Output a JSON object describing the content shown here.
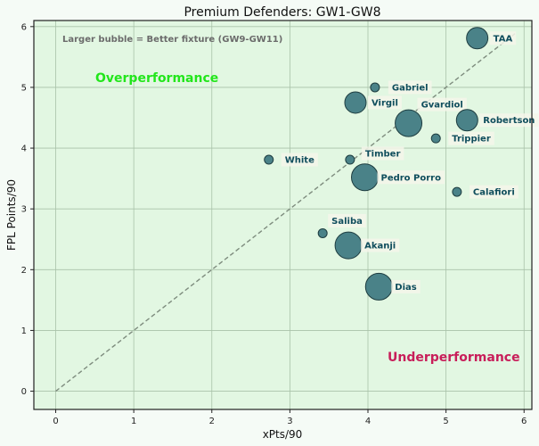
{
  "chart_data": {
    "type": "scatter",
    "title": "Premium Defenders: GW1-GW8",
    "xlabel": "xPts/90",
    "ylabel": "FPL Points/90",
    "xlim": [
      -0.28,
      6.1
    ],
    "ylim": [
      -0.3,
      6.1
    ],
    "xticks": [
      0,
      1,
      2,
      3,
      4,
      5,
      6
    ],
    "yticks": [
      0,
      1,
      2,
      3,
      4,
      5,
      6
    ],
    "grid": true,
    "bubble_note": "Larger bubble = Better fixture (GW9-GW11)",
    "annotations": {
      "over": "Overperformance",
      "under": "Underperformance"
    },
    "reference_line": {
      "x": [
        0,
        5.9
      ],
      "y": [
        0,
        5.9
      ],
      "style": "dashed"
    },
    "points": [
      {
        "name": "TAA",
        "x": 5.4,
        "y": 5.81,
        "size": 12
      },
      {
        "name": "Gabriel",
        "x": 4.09,
        "y": 5.0,
        "size": 5
      },
      {
        "name": "Virgil",
        "x": 3.84,
        "y": 4.75,
        "size": 12
      },
      {
        "name": "Gvardiol",
        "x": 4.52,
        "y": 4.41,
        "size": 15
      },
      {
        "name": "Robertson",
        "x": 5.27,
        "y": 4.46,
        "size": 12
      },
      {
        "name": "Trippier",
        "x": 4.87,
        "y": 4.16,
        "size": 5
      },
      {
        "name": "White",
        "x": 2.73,
        "y": 3.81,
        "size": 5
      },
      {
        "name": "Timber",
        "x": 3.77,
        "y": 3.81,
        "size": 5
      },
      {
        "name": "Pedro Porro",
        "x": 3.96,
        "y": 3.52,
        "size": 15
      },
      {
        "name": "Calafiori",
        "x": 5.14,
        "y": 3.28,
        "size": 5
      },
      {
        "name": "Saliba",
        "x": 3.42,
        "y": 2.6,
        "size": 5
      },
      {
        "name": "Akanji",
        "x": 3.75,
        "y": 2.4,
        "size": 15
      },
      {
        "name": "Dias",
        "x": 4.14,
        "y": 1.72,
        "size": 15
      }
    ],
    "label_offsets": {
      "TAA": [
        18,
        0
      ],
      "Gabriel": [
        19,
        0
      ],
      "Virgil": [
        18,
        0
      ],
      "Gvardiol": [
        14,
        -21
      ],
      "Robertson": [
        18,
        0
      ],
      "Trippier": [
        18,
        0
      ],
      "White": [
        18,
        0
      ],
      "Timber": [
        17,
        -7
      ],
      "Pedro Porro": [
        18,
        0
      ],
      "Calafiori": [
        18,
        0
      ],
      "Saliba": [
        10,
        -14
      ],
      "Akanji": [
        18,
        0
      ],
      "Dias": [
        18,
        0
      ]
    }
  },
  "colors": {
    "page_bg": "#f5fbf6",
    "plot_bg": "#e2f7e2",
    "grid": "#a9c2a9",
    "bubble_fill": "#4a8288",
    "bubble_edge": "#1e3d40",
    "label_text": "#0f4d5c",
    "label_box": "#f4f6ea",
    "ref_line": "#7e8c7e",
    "over_color": "#22e61b",
    "under_color": "#c81e5a",
    "note_color": "#6b6b6b"
  }
}
